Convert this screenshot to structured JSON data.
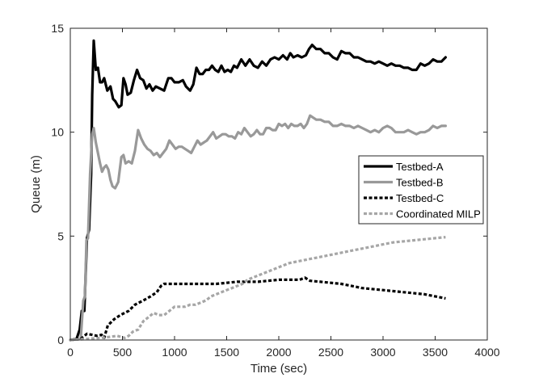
{
  "chart_data": {
    "type": "line",
    "title": "",
    "xlabel": "Time (sec)",
    "ylabel": "Queue (m)",
    "xlim": [
      0,
      4000
    ],
    "ylim": [
      0,
      15
    ],
    "xticks": [
      0,
      500,
      1000,
      1500,
      2000,
      2500,
      3000,
      3500,
      4000
    ],
    "yticks": [
      0,
      5,
      10,
      15
    ],
    "grid": false,
    "legend_position": "right",
    "series": [
      {
        "name": "Testbed-A",
        "color": "#000000",
        "style": "solid",
        "points": [
          [
            0,
            0
          ],
          [
            60,
            0.05
          ],
          [
            90,
            0.5
          ],
          [
            110,
            1.4
          ],
          [
            135,
            1.4
          ],
          [
            160,
            4.9
          ],
          [
            180,
            5.3
          ],
          [
            200,
            8.0
          ],
          [
            210,
            11.8
          ],
          [
            225,
            14.4
          ],
          [
            245,
            13.0
          ],
          [
            265,
            13.1
          ],
          [
            285,
            12.4
          ],
          [
            305,
            12.4
          ],
          [
            325,
            12.6
          ],
          [
            355,
            12.0
          ],
          [
            385,
            12.2
          ],
          [
            410,
            11.6
          ],
          [
            430,
            11.5
          ],
          [
            465,
            11.2
          ],
          [
            490,
            11.3
          ],
          [
            510,
            12.6
          ],
          [
            530,
            12.3
          ],
          [
            550,
            11.8
          ],
          [
            580,
            11.9
          ],
          [
            610,
            12.5
          ],
          [
            640,
            13.0
          ],
          [
            670,
            12.6
          ],
          [
            700,
            12.5
          ],
          [
            730,
            12.1
          ],
          [
            760,
            12.3
          ],
          [
            790,
            12.0
          ],
          [
            820,
            12.2
          ],
          [
            860,
            12.1
          ],
          [
            900,
            12.0
          ],
          [
            940,
            12.6
          ],
          [
            970,
            12.6
          ],
          [
            1000,
            12.4
          ],
          [
            1040,
            12.4
          ],
          [
            1080,
            12.5
          ],
          [
            1110,
            12.2
          ],
          [
            1150,
            12.0
          ],
          [
            1180,
            12.3
          ],
          [
            1210,
            13.1
          ],
          [
            1240,
            12.8
          ],
          [
            1270,
            12.8
          ],
          [
            1300,
            13.0
          ],
          [
            1330,
            13.0
          ],
          [
            1360,
            13.2
          ],
          [
            1390,
            13.0
          ],
          [
            1420,
            12.9
          ],
          [
            1450,
            13.2
          ],
          [
            1480,
            12.9
          ],
          [
            1510,
            13.0
          ],
          [
            1540,
            12.9
          ],
          [
            1570,
            13.2
          ],
          [
            1600,
            13.1
          ],
          [
            1640,
            13.5
          ],
          [
            1680,
            13.2
          ],
          [
            1720,
            13.5
          ],
          [
            1760,
            13.2
          ],
          [
            1800,
            13.1
          ],
          [
            1840,
            13.4
          ],
          [
            1880,
            13.2
          ],
          [
            1920,
            13.5
          ],
          [
            1960,
            13.6
          ],
          [
            2000,
            13.5
          ],
          [
            2040,
            13.7
          ],
          [
            2080,
            13.5
          ],
          [
            2110,
            13.8
          ],
          [
            2140,
            13.6
          ],
          [
            2180,
            13.7
          ],
          [
            2220,
            13.6
          ],
          [
            2260,
            13.7
          ],
          [
            2290,
            14.0
          ],
          [
            2320,
            14.2
          ],
          [
            2360,
            14.0
          ],
          [
            2400,
            14.0
          ],
          [
            2440,
            13.8
          ],
          [
            2480,
            13.8
          ],
          [
            2520,
            13.6
          ],
          [
            2560,
            13.5
          ],
          [
            2600,
            13.9
          ],
          [
            2640,
            13.8
          ],
          [
            2680,
            13.8
          ],
          [
            2720,
            13.6
          ],
          [
            2760,
            13.6
          ],
          [
            2800,
            13.5
          ],
          [
            2840,
            13.4
          ],
          [
            2880,
            13.4
          ],
          [
            2920,
            13.3
          ],
          [
            2960,
            13.4
          ],
          [
            3000,
            13.3
          ],
          [
            3040,
            13.2
          ],
          [
            3080,
            13.3
          ],
          [
            3120,
            13.2
          ],
          [
            3160,
            13.2
          ],
          [
            3200,
            13.1
          ],
          [
            3240,
            13.1
          ],
          [
            3280,
            13.0
          ],
          [
            3320,
            13.0
          ],
          [
            3360,
            13.3
          ],
          [
            3400,
            13.2
          ],
          [
            3440,
            13.3
          ],
          [
            3480,
            13.5
          ],
          [
            3520,
            13.4
          ],
          [
            3560,
            13.4
          ],
          [
            3600,
            13.6
          ]
        ]
      },
      {
        "name": "Testbed-B",
        "color": "#999999",
        "style": "solid",
        "points": [
          [
            0,
            0
          ],
          [
            100,
            0.05
          ],
          [
            125,
            1.9
          ],
          [
            140,
            2.1
          ],
          [
            155,
            4.8
          ],
          [
            170,
            4.9
          ],
          [
            190,
            8.0
          ],
          [
            210,
            9.9
          ],
          [
            225,
            10.2
          ],
          [
            245,
            9.5
          ],
          [
            265,
            9.0
          ],
          [
            285,
            8.5
          ],
          [
            305,
            8.1
          ],
          [
            325,
            8.3
          ],
          [
            345,
            8.4
          ],
          [
            365,
            8.2
          ],
          [
            385,
            7.7
          ],
          [
            405,
            7.4
          ],
          [
            430,
            7.3
          ],
          [
            460,
            7.6
          ],
          [
            490,
            8.8
          ],
          [
            510,
            8.9
          ],
          [
            530,
            8.5
          ],
          [
            560,
            8.6
          ],
          [
            590,
            8.5
          ],
          [
            620,
            9.1
          ],
          [
            650,
            10.1
          ],
          [
            680,
            9.7
          ],
          [
            710,
            9.4
          ],
          [
            740,
            9.2
          ],
          [
            770,
            9.1
          ],
          [
            800,
            8.9
          ],
          [
            830,
            9.0
          ],
          [
            860,
            8.8
          ],
          [
            890,
            9.0
          ],
          [
            920,
            9.2
          ],
          [
            950,
            9.6
          ],
          [
            980,
            9.4
          ],
          [
            1010,
            9.2
          ],
          [
            1040,
            9.3
          ],
          [
            1070,
            9.3
          ],
          [
            1100,
            9.2
          ],
          [
            1130,
            9.1
          ],
          [
            1160,
            9.0
          ],
          [
            1190,
            9.3
          ],
          [
            1220,
            9.6
          ],
          [
            1250,
            9.4
          ],
          [
            1280,
            9.5
          ],
          [
            1310,
            9.6
          ],
          [
            1340,
            9.8
          ],
          [
            1370,
            10.0
          ],
          [
            1400,
            9.7
          ],
          [
            1430,
            9.8
          ],
          [
            1460,
            9.9
          ],
          [
            1490,
            9.9
          ],
          [
            1520,
            9.8
          ],
          [
            1550,
            9.8
          ],
          [
            1580,
            9.7
          ],
          [
            1610,
            10.0
          ],
          [
            1640,
            9.9
          ],
          [
            1670,
            10.2
          ],
          [
            1700,
            10.0
          ],
          [
            1730,
            9.8
          ],
          [
            1760,
            9.9
          ],
          [
            1790,
            10.1
          ],
          [
            1820,
            9.9
          ],
          [
            1850,
            9.9
          ],
          [
            1880,
            10.2
          ],
          [
            1910,
            10.2
          ],
          [
            1940,
            10.1
          ],
          [
            1970,
            10.1
          ],
          [
            2000,
            10.4
          ],
          [
            2030,
            10.3
          ],
          [
            2060,
            10.4
          ],
          [
            2090,
            10.2
          ],
          [
            2120,
            10.4
          ],
          [
            2150,
            10.3
          ],
          [
            2180,
            10.3
          ],
          [
            2210,
            10.4
          ],
          [
            2240,
            10.2
          ],
          [
            2270,
            10.4
          ],
          [
            2300,
            10.8
          ],
          [
            2330,
            10.7
          ],
          [
            2360,
            10.6
          ],
          [
            2400,
            10.6
          ],
          [
            2440,
            10.5
          ],
          [
            2480,
            10.5
          ],
          [
            2520,
            10.3
          ],
          [
            2560,
            10.3
          ],
          [
            2600,
            10.4
          ],
          [
            2640,
            10.3
          ],
          [
            2680,
            10.3
          ],
          [
            2720,
            10.2
          ],
          [
            2760,
            10.3
          ],
          [
            2800,
            10.2
          ],
          [
            2840,
            10.1
          ],
          [
            2880,
            10.0
          ],
          [
            2920,
            10.1
          ],
          [
            2960,
            10.0
          ],
          [
            3000,
            10.2
          ],
          [
            3040,
            10.3
          ],
          [
            3080,
            10.2
          ],
          [
            3120,
            10.0
          ],
          [
            3160,
            10.0
          ],
          [
            3200,
            10.0
          ],
          [
            3240,
            10.1
          ],
          [
            3280,
            10.0
          ],
          [
            3320,
            9.9
          ],
          [
            3360,
            10.0
          ],
          [
            3400,
            10.0
          ],
          [
            3440,
            10.1
          ],
          [
            3480,
            10.3
          ],
          [
            3520,
            10.2
          ],
          [
            3560,
            10.3
          ],
          [
            3600,
            10.3
          ]
        ]
      },
      {
        "name": "Testbed-C",
        "color": "#000000",
        "style": "dotted",
        "points": [
          [
            0,
            0
          ],
          [
            100,
            0.05
          ],
          [
            160,
            0.3
          ],
          [
            210,
            0.25
          ],
          [
            260,
            0.2
          ],
          [
            300,
            0.25
          ],
          [
            325,
            0.1
          ],
          [
            360,
            0.7
          ],
          [
            420,
            1.0
          ],
          [
            480,
            1.2
          ],
          [
            560,
            1.4
          ],
          [
            620,
            1.7
          ],
          [
            700,
            1.9
          ],
          [
            770,
            2.1
          ],
          [
            830,
            2.3
          ],
          [
            870,
            2.6
          ],
          [
            900,
            2.7
          ],
          [
            1000,
            2.7
          ],
          [
            1200,
            2.7
          ],
          [
            1400,
            2.7
          ],
          [
            1600,
            2.8
          ],
          [
            1800,
            2.8
          ],
          [
            2000,
            2.9
          ],
          [
            2200,
            2.9
          ],
          [
            2250,
            3.0
          ],
          [
            2300,
            2.85
          ],
          [
            2400,
            2.8
          ],
          [
            2600,
            2.7
          ],
          [
            2800,
            2.5
          ],
          [
            3000,
            2.4
          ],
          [
            3200,
            2.3
          ],
          [
            3400,
            2.2
          ],
          [
            3600,
            2.0
          ]
        ]
      },
      {
        "name": "Coordinated MILP",
        "color": "#a6a6a6",
        "style": "dotted",
        "points": [
          [
            0,
            0
          ],
          [
            150,
            0.05
          ],
          [
            300,
            0.1
          ],
          [
            450,
            0.2
          ],
          [
            520,
            0.1
          ],
          [
            560,
            0.2
          ],
          [
            600,
            0.4
          ],
          [
            650,
            0.5
          ],
          [
            700,
            0.9
          ],
          [
            750,
            1.1
          ],
          [
            800,
            1.3
          ],
          [
            850,
            1.2
          ],
          [
            900,
            1.2
          ],
          [
            950,
            1.4
          ],
          [
            1000,
            1.6
          ],
          [
            1050,
            1.6
          ],
          [
            1100,
            1.6
          ],
          [
            1150,
            1.7
          ],
          [
            1200,
            1.7
          ],
          [
            1250,
            1.8
          ],
          [
            1300,
            1.9
          ],
          [
            1350,
            2.1
          ],
          [
            1400,
            2.2
          ],
          [
            1450,
            2.3
          ],
          [
            1500,
            2.4
          ],
          [
            1550,
            2.5
          ],
          [
            1600,
            2.6
          ],
          [
            1650,
            2.7
          ],
          [
            1700,
            2.9
          ],
          [
            1800,
            3.1
          ],
          [
            1900,
            3.3
          ],
          [
            2000,
            3.5
          ],
          [
            2100,
            3.7
          ],
          [
            2200,
            3.8
          ],
          [
            2300,
            3.9
          ],
          [
            2400,
            4.0
          ],
          [
            2500,
            4.1
          ],
          [
            2600,
            4.2
          ],
          [
            2700,
            4.3
          ],
          [
            2800,
            4.4
          ],
          [
            2900,
            4.5
          ],
          [
            3000,
            4.6
          ],
          [
            3100,
            4.7
          ],
          [
            3200,
            4.75
          ],
          [
            3300,
            4.8
          ],
          [
            3400,
            4.85
          ],
          [
            3500,
            4.9
          ],
          [
            3600,
            4.95
          ]
        ]
      }
    ]
  }
}
